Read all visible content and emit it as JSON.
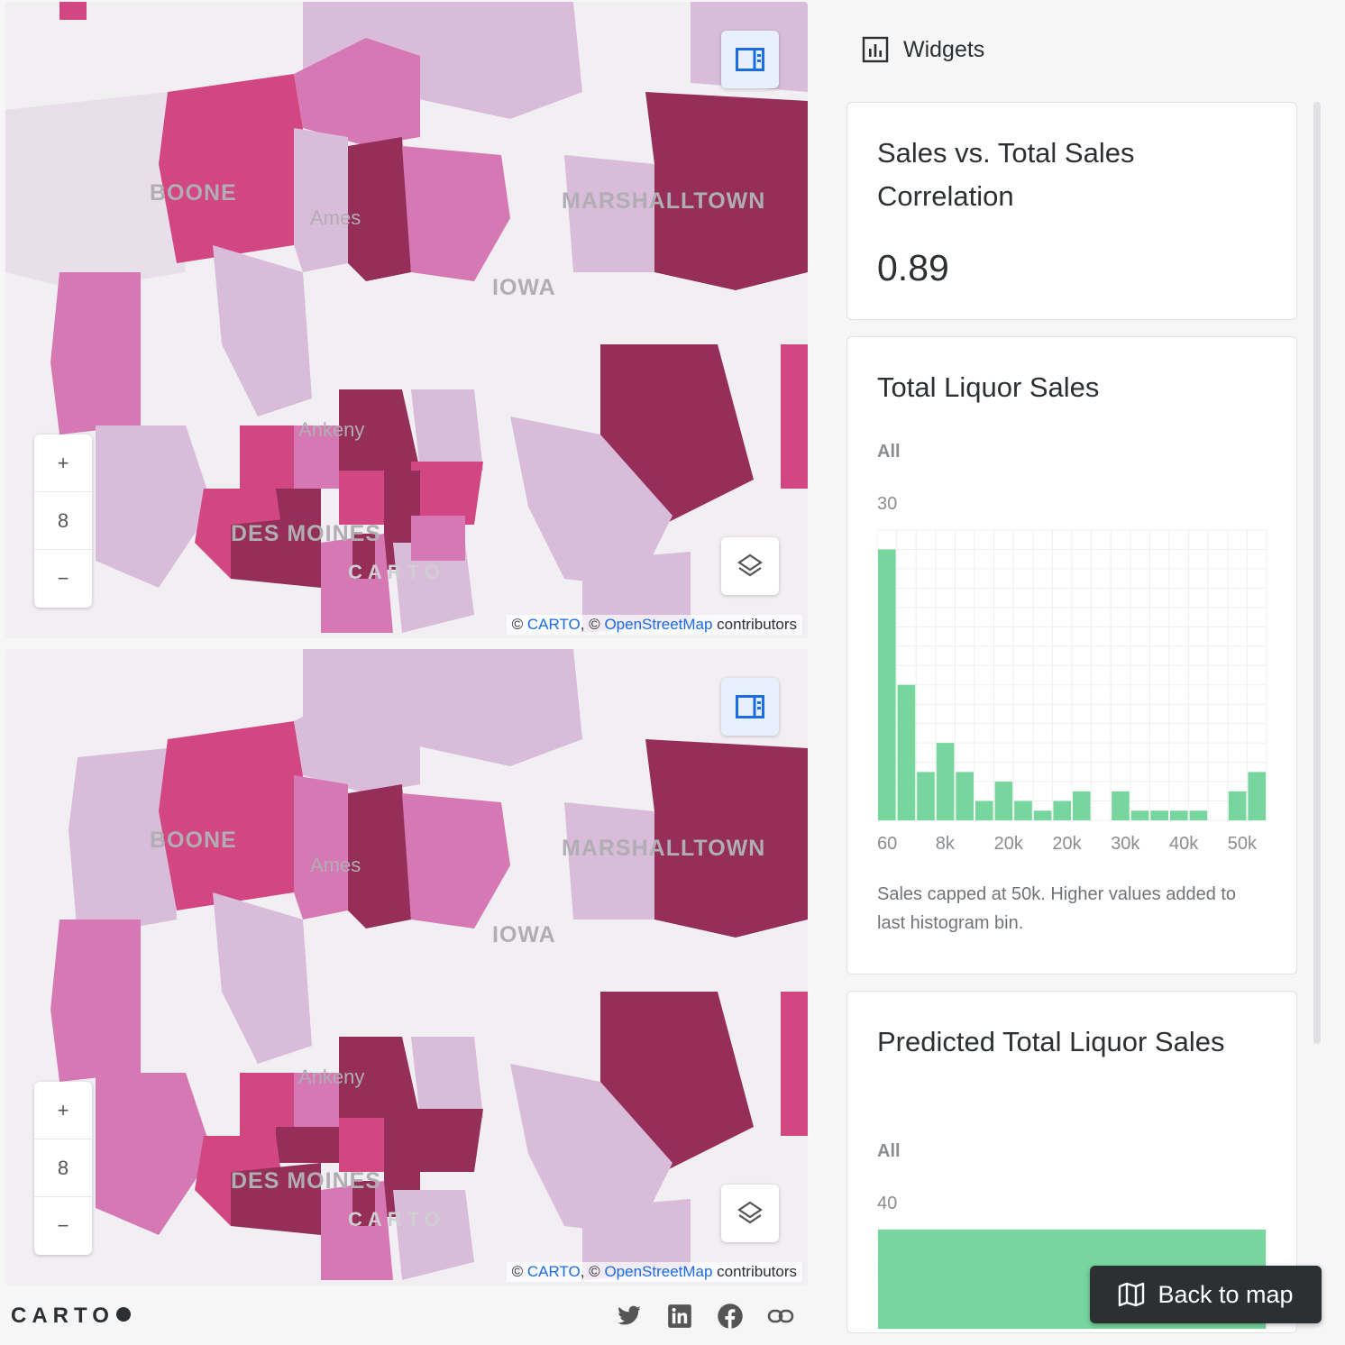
{
  "maps": [
    {
      "zoom_level": "8",
      "zoom_in": "+",
      "zoom_out": "−",
      "labels": {
        "boone": "BOONE",
        "ames": "Ames",
        "marshalltown": "MARSHALLTOWN",
        "iowa": "IOWA",
        "ankeny": "Ankeny",
        "des_moines": "DES MOINES"
      },
      "watermark": "CARTO",
      "attribution": {
        "prefix": "© ",
        "carto": "CARTO",
        "sep": ", © ",
        "osm": "OpenStreetMap",
        "suffix": " contributors"
      }
    },
    {
      "zoom_level": "8",
      "zoom_in": "+",
      "zoom_out": "−",
      "labels": {
        "boone": "BOONE",
        "ames": "Ames",
        "marshalltown": "MARSHALLTOWN",
        "iowa": "IOWA",
        "ankeny": "Ankeny",
        "des_moines": "DES MOINES"
      },
      "watermark": "CARTO",
      "attribution": {
        "prefix": "© ",
        "carto": "CARTO",
        "sep": ", © ",
        "osm": "OpenStreetMap",
        "suffix": " contributors"
      }
    }
  ],
  "footer": {
    "logo": "CARTO",
    "social_icons": [
      "twitter-icon",
      "linkedin-icon",
      "facebook-icon",
      "link-icon"
    ]
  },
  "panel": {
    "header": "Widgets",
    "correlation": {
      "title": "Sales vs. Total Sales Correlation",
      "value": "0.89"
    },
    "total_sales": {
      "title": "Total Liquor Sales",
      "filter": "All",
      "y_max": "30",
      "note": "Sales capped at 50k. Higher values added to last histogram bin."
    },
    "predicted_sales": {
      "title": "Predicted Total Liquor Sales",
      "filter": "All",
      "y_max": "40"
    },
    "back_button": "Back to map"
  },
  "colors": {
    "bar": "#77d69e",
    "dark": "#952f5a",
    "mid": "#d24782",
    "light": "#d678b4",
    "pale": "#d8bcd9"
  },
  "chart_data": [
    {
      "type": "bar",
      "title": "Total Liquor Sales",
      "x_tick_labels": [
        "60",
        "8k",
        "20k",
        "20k",
        "30k",
        "40k",
        "50k"
      ],
      "values": [
        28,
        14,
        5,
        8,
        5,
        2,
        4,
        2,
        1,
        2,
        3,
        0,
        3,
        1,
        1,
        1,
        1,
        0,
        3,
        5
      ],
      "ylim": [
        0,
        30
      ],
      "grid": true
    },
    {
      "type": "bar",
      "title": "Predicted Total Liquor Sales",
      "values": [
        40
      ],
      "ylim": [
        0,
        40
      ],
      "grid": true
    }
  ]
}
